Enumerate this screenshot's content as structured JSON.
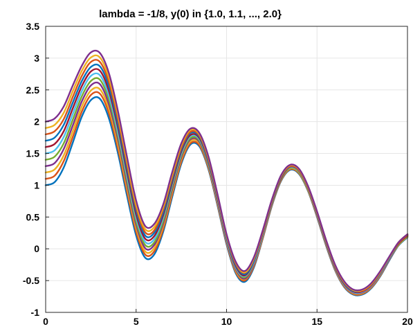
{
  "chart_data": {
    "type": "line",
    "title": "lambda = -1/8, y(0) in {1.0, 1.1, ..., 2.0}",
    "xlabel": "",
    "ylabel": "",
    "xlim": [
      0,
      20
    ],
    "ylim": [
      -1,
      3.5
    ],
    "grid": true,
    "x_ticks": [
      "0",
      "5",
      "10",
      "15",
      "20"
    ],
    "y_ticks": [
      "-1",
      "-0.5",
      "0",
      "0.5",
      "1",
      "1.5",
      "2",
      "2.5",
      "3",
      "3.5"
    ],
    "x": [
      0,
      0.5,
      1,
      1.5,
      2,
      2.5,
      3,
      3.5,
      4,
      4.5,
      5,
      5.5,
      6,
      6.5,
      7,
      7.5,
      8,
      8.5,
      9,
      9.5,
      10,
      10.5,
      11,
      11.5,
      12,
      12.5,
      13,
      13.5,
      14,
      14.5,
      15,
      15.5,
      16,
      16.5,
      17,
      17.5,
      18,
      18.5,
      19,
      19.5,
      20
    ],
    "series": [
      {
        "color": "#0072BD",
        "values": [
          1.0,
          1.05,
          1.28,
          1.67,
          2.08,
          2.34,
          2.36,
          2.05,
          1.5,
          0.83,
          0.21,
          -0.14,
          -0.09,
          0.27,
          0.82,
          1.34,
          1.64,
          1.61,
          1.25,
          0.68,
          0.07,
          -0.38,
          -0.52,
          -0.3,
          0.16,
          0.67,
          1.06,
          1.24,
          1.18,
          0.91,
          0.5,
          0.05,
          -0.34,
          -0.6,
          -0.72,
          -0.72,
          -0.62,
          -0.43,
          -0.18,
          0.05,
          0.18
        ]
      },
      {
        "color": "#D95319",
        "values": [
          1.1,
          1.15,
          1.38,
          1.76,
          2.16,
          2.42,
          2.44,
          2.13,
          1.57,
          0.9,
          0.27,
          -0.09,
          -0.04,
          0.31,
          0.86,
          1.37,
          1.66,
          1.63,
          1.27,
          0.7,
          0.09,
          -0.36,
          -0.5,
          -0.28,
          0.17,
          0.68,
          1.07,
          1.25,
          1.19,
          0.92,
          0.51,
          0.06,
          -0.33,
          -0.59,
          -0.71,
          -0.71,
          -0.61,
          -0.42,
          -0.17,
          0.06,
          0.19
        ]
      },
      {
        "color": "#EDB120",
        "values": [
          1.2,
          1.25,
          1.47,
          1.85,
          2.24,
          2.49,
          2.51,
          2.2,
          1.64,
          0.96,
          0.33,
          -0.04,
          0.01,
          0.36,
          0.9,
          1.41,
          1.69,
          1.66,
          1.29,
          0.72,
          0.11,
          -0.34,
          -0.48,
          -0.26,
          0.19,
          0.69,
          1.08,
          1.26,
          1.2,
          0.93,
          0.52,
          0.07,
          -0.32,
          -0.58,
          -0.7,
          -0.7,
          -0.6,
          -0.41,
          -0.16,
          0.06,
          0.19
        ]
      },
      {
        "color": "#7E2F8E",
        "values": [
          1.3,
          1.35,
          1.57,
          1.94,
          2.32,
          2.57,
          2.59,
          2.27,
          1.71,
          1.02,
          0.38,
          0.01,
          0.06,
          0.4,
          0.94,
          1.44,
          1.72,
          1.68,
          1.31,
          0.74,
          0.12,
          -0.32,
          -0.47,
          -0.25,
          0.2,
          0.7,
          1.09,
          1.27,
          1.21,
          0.94,
          0.53,
          0.08,
          -0.31,
          -0.57,
          -0.69,
          -0.69,
          -0.59,
          -0.4,
          -0.16,
          0.07,
          0.2
        ]
      },
      {
        "color": "#77AC30",
        "values": [
          1.4,
          1.45,
          1.66,
          2.03,
          2.4,
          2.64,
          2.66,
          2.34,
          1.77,
          1.08,
          0.43,
          0.06,
          0.1,
          0.44,
          0.98,
          1.47,
          1.74,
          1.7,
          1.33,
          0.76,
          0.14,
          -0.3,
          -0.45,
          -0.23,
          0.21,
          0.71,
          1.1,
          1.27,
          1.21,
          0.94,
          0.54,
          0.09,
          -0.3,
          -0.56,
          -0.68,
          -0.68,
          -0.58,
          -0.39,
          -0.15,
          0.07,
          0.2
        ]
      },
      {
        "color": "#4DBEEE",
        "values": [
          1.5,
          1.55,
          1.76,
          2.12,
          2.48,
          2.72,
          2.73,
          2.41,
          1.83,
          1.14,
          0.49,
          0.11,
          0.15,
          0.49,
          1.02,
          1.5,
          1.77,
          1.72,
          1.35,
          0.77,
          0.15,
          -0.29,
          -0.43,
          -0.22,
          0.22,
          0.72,
          1.11,
          1.28,
          1.22,
          0.95,
          0.54,
          0.09,
          -0.3,
          -0.56,
          -0.68,
          -0.68,
          -0.58,
          -0.39,
          -0.15,
          0.08,
          0.21
        ]
      },
      {
        "color": "#A2142F",
        "values": [
          1.6,
          1.65,
          1.85,
          2.21,
          2.56,
          2.79,
          2.8,
          2.48,
          1.9,
          1.2,
          0.54,
          0.16,
          0.2,
          0.53,
          1.05,
          1.53,
          1.79,
          1.74,
          1.37,
          0.79,
          0.17,
          -0.27,
          -0.42,
          -0.2,
          0.24,
          0.73,
          1.11,
          1.29,
          1.23,
          0.96,
          0.55,
          0.1,
          -0.29,
          -0.55,
          -0.67,
          -0.67,
          -0.57,
          -0.38,
          -0.14,
          0.08,
          0.21
        ]
      },
      {
        "color": "#0072BD",
        "values": [
          1.7,
          1.75,
          1.95,
          2.3,
          2.64,
          2.86,
          2.87,
          2.55,
          1.96,
          1.26,
          0.6,
          0.21,
          0.25,
          0.57,
          1.09,
          1.56,
          1.82,
          1.76,
          1.39,
          0.81,
          0.18,
          -0.25,
          -0.4,
          -0.19,
          0.25,
          0.74,
          1.12,
          1.3,
          1.24,
          0.97,
          0.56,
          0.11,
          -0.28,
          -0.54,
          -0.66,
          -0.66,
          -0.56,
          -0.38,
          -0.14,
          0.09,
          0.22
        ]
      },
      {
        "color": "#D95319",
        "values": [
          1.8,
          1.85,
          2.04,
          2.39,
          2.72,
          2.94,
          2.94,
          2.62,
          2.03,
          1.32,
          0.65,
          0.26,
          0.29,
          0.62,
          1.13,
          1.59,
          1.84,
          1.78,
          1.41,
          0.83,
          0.2,
          -0.23,
          -0.38,
          -0.17,
          0.26,
          0.75,
          1.13,
          1.3,
          1.24,
          0.97,
          0.57,
          0.12,
          -0.27,
          -0.53,
          -0.65,
          -0.66,
          -0.56,
          -0.37,
          -0.13,
          0.09,
          0.22
        ]
      },
      {
        "color": "#EDB120",
        "values": [
          1.9,
          1.95,
          2.14,
          2.48,
          2.8,
          3.01,
          3.01,
          2.69,
          2.1,
          1.38,
          0.7,
          0.31,
          0.34,
          0.66,
          1.17,
          1.63,
          1.87,
          1.8,
          1.43,
          0.84,
          0.21,
          -0.21,
          -0.37,
          -0.16,
          0.28,
          0.76,
          1.14,
          1.31,
          1.25,
          0.98,
          0.58,
          0.13,
          -0.26,
          -0.52,
          -0.65,
          -0.65,
          -0.55,
          -0.36,
          -0.13,
          0.1,
          0.23
        ]
      },
      {
        "color": "#7E2F8E",
        "values": [
          2.0,
          2.05,
          2.24,
          2.57,
          2.88,
          3.09,
          3.08,
          2.76,
          2.16,
          1.44,
          0.76,
          0.36,
          0.39,
          0.7,
          1.21,
          1.66,
          1.89,
          1.82,
          1.45,
          0.86,
          0.23,
          -0.2,
          -0.35,
          -0.14,
          0.29,
          0.77,
          1.15,
          1.32,
          1.26,
          0.99,
          0.59,
          0.14,
          -0.25,
          -0.51,
          -0.64,
          -0.64,
          -0.54,
          -0.35,
          -0.12,
          0.1,
          0.23
        ]
      }
    ]
  }
}
